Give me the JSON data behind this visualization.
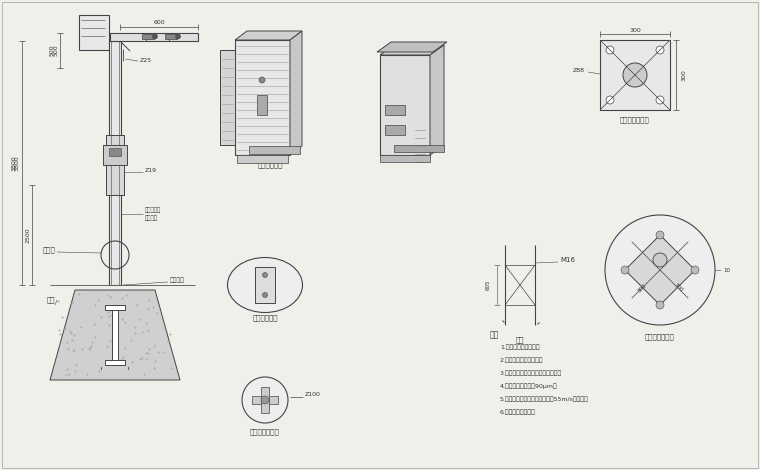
{
  "bg_color": "#f0f0eb",
  "line_color": "#444444",
  "text_color": "#333333",
  "labels": {
    "fangshui": "防水筱放大图",
    "weixiu": "维修孔放大图",
    "paoji": "抮机法兰放大图",
    "dichen": "地笼",
    "diceng_zhengshi": "底座法兰正视图",
    "diceng_fangda": "底座法兰放大图",
    "shuoming": "说明",
    "weixiu_label": "维修孔",
    "dicas_label": "地笼",
    "diceng_falanlan": "底座法兰",
    "phi25": "Ζ25",
    "phi19": "Ζ19",
    "phi88": "Ζ88",
    "phi100": "Ζ100",
    "shangduan": "上段表面色",
    "xiaduan": "下段烟色",
    "notes": [
      "1.主干为国标镶锌管。",
      "2.上下法兰加密封连接。",
      "3.喷涂后不再进行任何加工和焊接。",
      "4.钙管開锌等管护为90μm。",
      "5.立杆、敷骨和其它部件应能抗55m/s的风速。",
      "6.棍棒、避雷针可折"
    ]
  }
}
